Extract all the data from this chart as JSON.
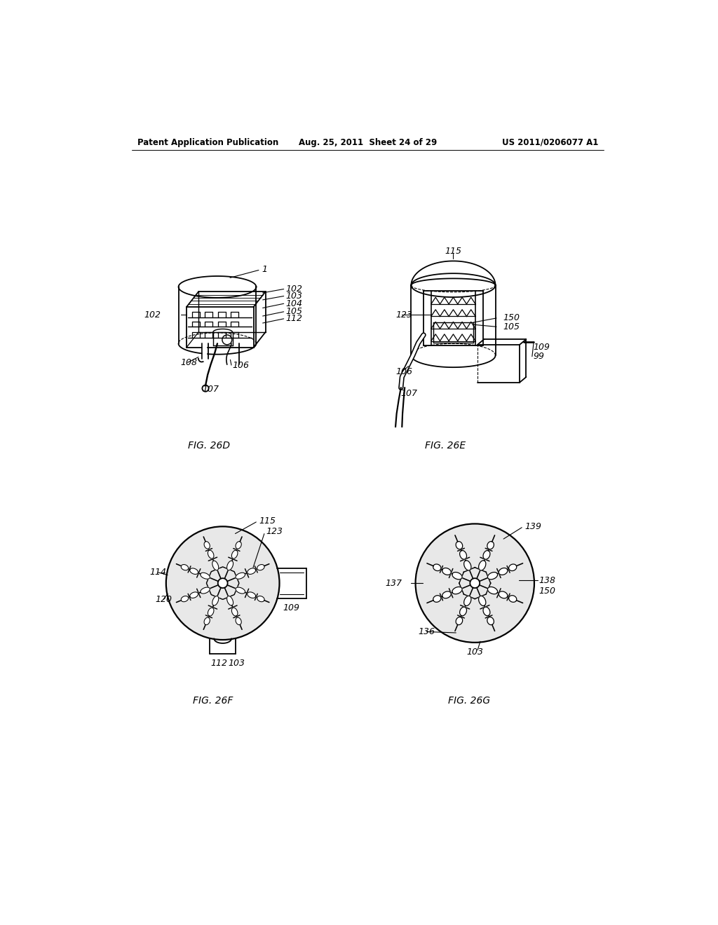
{
  "background_color": "#ffffff",
  "header_left": "Patent Application Publication",
  "header_center": "Aug. 25, 2011  Sheet 24 of 29",
  "header_right": "US 2011/0206077 A1",
  "fig26D_label": "FIG. 26D",
  "fig26E_label": "FIG. 26E",
  "fig26F_label": "FIG. 26F",
  "fig26G_label": "FIG. 26G",
  "line_color": "#000000",
  "lw": 1.3,
  "label_fontsize": 9,
  "cap_fontsize": 10,
  "header_fontsize": 8.5
}
